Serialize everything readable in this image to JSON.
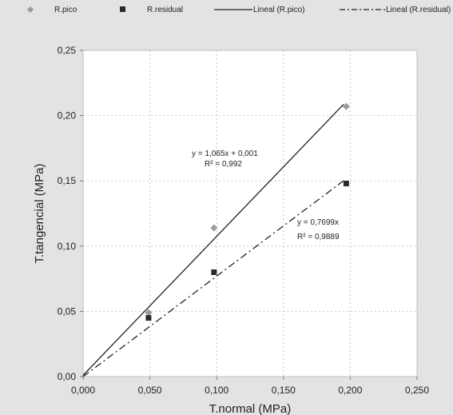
{
  "chart_data": {
    "type": "scatter",
    "xlabel": "T.normal (MPa)",
    "ylabel": "T.tangencial (MPa)",
    "xlim": [
      0,
      0.25
    ],
    "ylim": [
      0,
      0.25
    ],
    "x_ticks": [
      "0,000",
      "0,050",
      "0,100",
      "0,150",
      "0,200",
      "0,250"
    ],
    "y_ticks": [
      "0,00",
      "0,05",
      "0,10",
      "0,15",
      "0,20",
      "0,25"
    ],
    "grid": true,
    "legend_position": "top",
    "series": [
      {
        "name": "R.pico",
        "marker": "diamond",
        "color": "#9a9a9a",
        "points": [
          [
            0.049,
            0.049
          ],
          [
            0.098,
            0.114
          ],
          [
            0.197,
            0.207
          ]
        ]
      },
      {
        "name": "R.residual",
        "marker": "square",
        "color": "#2a2a2a",
        "points": [
          [
            0.049,
            0.045
          ],
          [
            0.098,
            0.08
          ],
          [
            0.197,
            0.148
          ]
        ]
      }
    ],
    "trendlines": [
      {
        "name": "Lineal (R.pico)",
        "style": "solid",
        "slope": 1.065,
        "intercept": 0.001,
        "x_range": [
          0,
          0.195
        ],
        "equation": "y = 1,065x + 0,001",
        "r2": "R² = 0,992"
      },
      {
        "name": "Lineal (R.residual)",
        "style": "dashdot",
        "slope": 0.7699,
        "intercept": 0,
        "x_range": [
          0,
          0.195
        ],
        "equation": "y = 0,7699x",
        "r2": "R² = 0,9889"
      }
    ]
  }
}
